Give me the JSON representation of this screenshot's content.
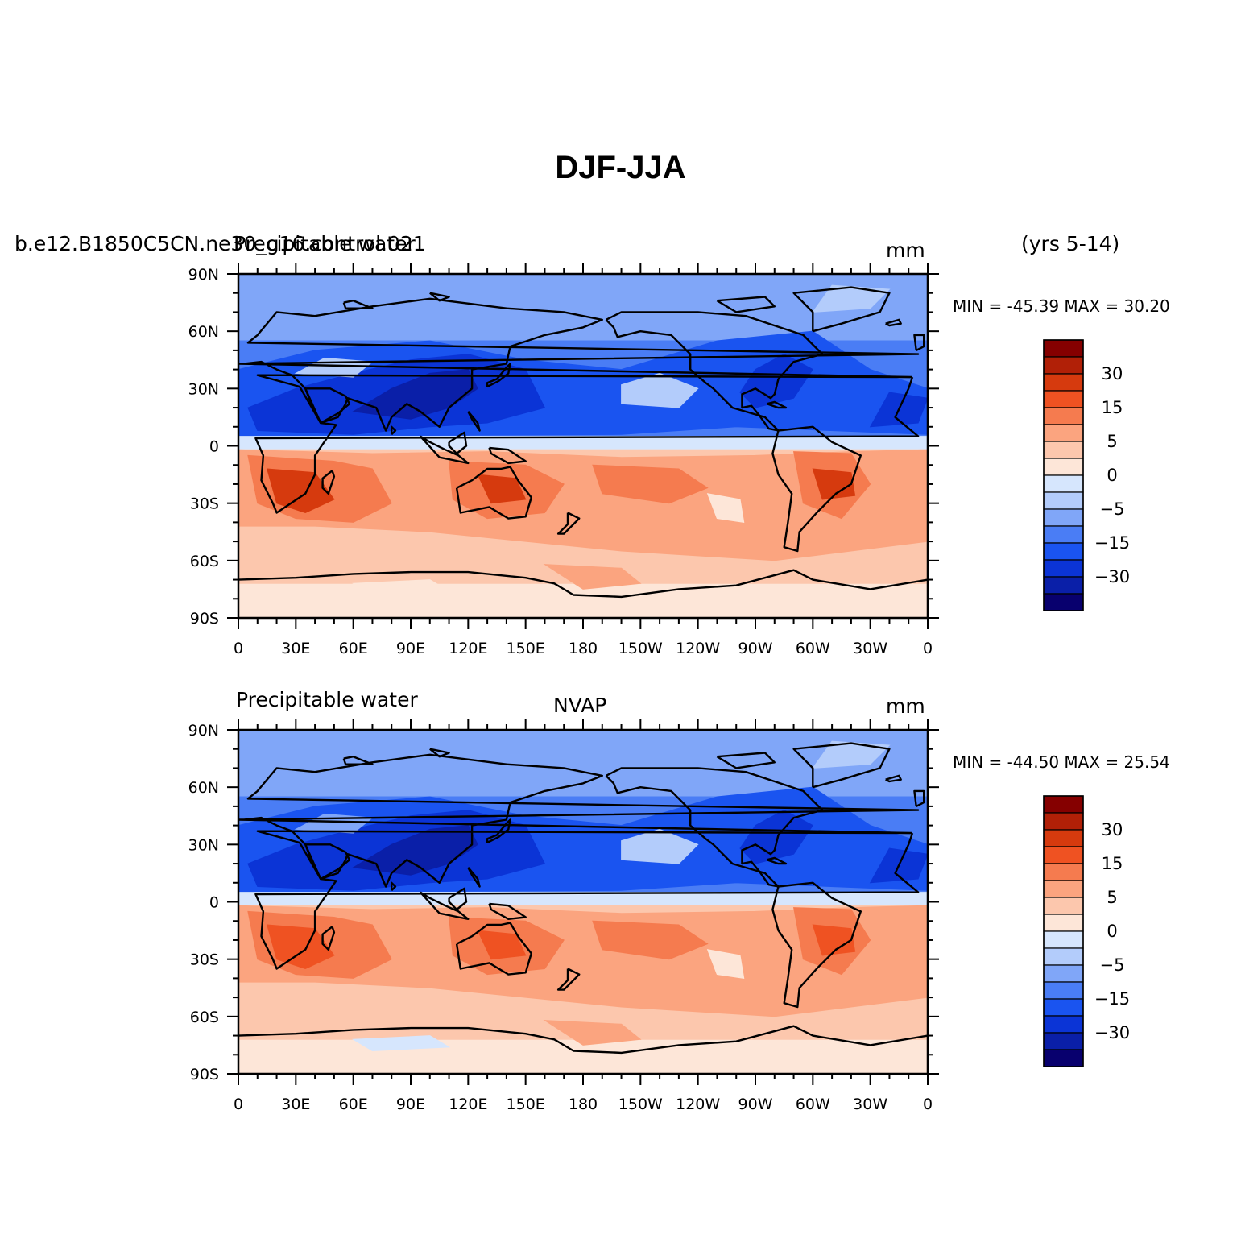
{
  "title": "DJF-JJA",
  "x_ticks": [
    "0",
    "30E",
    "60E",
    "90E",
    "120E",
    "150E",
    "180",
    "150W",
    "120W",
    "90W",
    "60W",
    "30W",
    "0"
  ],
  "y_ticks": [
    "90N",
    "60N",
    "30N",
    "0",
    "30S",
    "60S",
    "90S"
  ],
  "colorbar_labels": [
    "30",
    "15",
    "5",
    "0",
    "-5",
    "-15",
    "-30"
  ],
  "colors": {
    "levels": [
      "#08006e",
      "#0a1fa8",
      "#0b34d6",
      "#1a54f0",
      "#4a7df5",
      "#80a6f8",
      "#b3ccfb",
      "#d6e6fd",
      "#fde6d8",
      "#fcc7ad",
      "#fba47f",
      "#f57b4f",
      "#ef5222",
      "#d63a0e",
      "#b12007",
      "#850000"
    ],
    "coast": "#000000"
  },
  "panels": [
    {
      "left_label": "b.e12.B1850C5CN.ne30_g16.control.021",
      "left_label_overlap": "Precipitable water",
      "center_label": "",
      "units": "mm",
      "extra_label": "(yrs 5-14)",
      "minmax": "MIN = -45.39  MAX =  30.20"
    },
    {
      "left_label": "Precipitable water",
      "center_label": "NVAP",
      "units": "mm",
      "extra_label": "",
      "minmax": "MIN = -44.50  MAX =  25.54"
    }
  ]
}
